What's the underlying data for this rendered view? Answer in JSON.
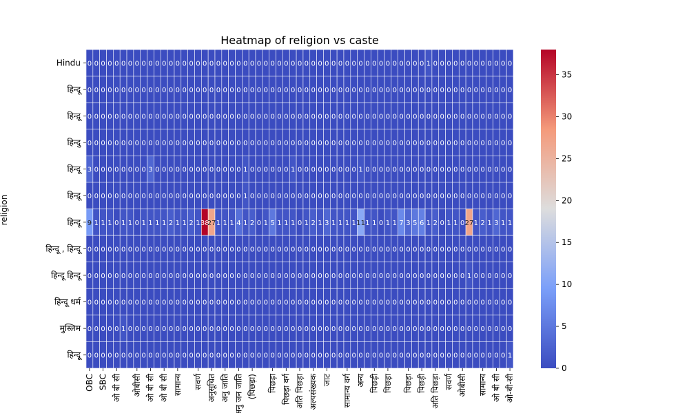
{
  "chart_data": {
    "type": "heatmap",
    "title": "Heatmap of religion vs caste",
    "ylabel": "religion",
    "xlabel": "",
    "colormap": "coolwarm",
    "color_low": "#3b4cc0",
    "color_mid": "#dddddd",
    "color_high": "#b40426",
    "value_range": [
      0,
      38
    ],
    "colorbar_ticks": [
      0,
      5,
      10,
      15,
      20,
      25,
      30,
      35
    ],
    "rows": [
      "Hindu",
      "हिन्दू",
      "हिन्दू़",
      "हिन्दु",
      "हिन्दू",
      "हिन्दू़",
      "हिन्दू",
      "हिन्दू , हिन्दू",
      "हिन्दू हिन्दू",
      "हिन्दू धर्म",
      "मुस्लिम",
      "हिन्दूू"
    ],
    "columns": [
      "OBC",
      "SBC",
      "",
      "",
      "",
      "",
      "",
      "",
      "",
      "",
      "",
      "",
      "",
      "",
      "",
      "",
      "",
      "",
      "",
      "",
      "",
      "",
      "",
      "",
      "",
      "",
      "",
      "",
      "",
      "",
      "",
      "",
      "",
      "",
      "",
      "",
      "",
      "",
      "",
      "",
      "",
      "",
      "",
      "",
      "",
      "",
      "",
      "",
      "",
      "",
      "",
      "",
      "",
      "",
      "",
      "",
      "",
      "",
      "",
      "",
      "",
      "",
      ""
    ],
    "x_tick_labels": [
      "OBC",
      "SBC",
      "ओ बी सी",
      "ओबीसी",
      "ओ बी सी",
      "ओ बी सी",
      "सामान्य",
      "सवर्ण",
      "अनुसूचित",
      "अनु जाति",
      "अनु जन जाति",
      "(पिछड़ा)",
      "पिछड़ा",
      "पिछड़ा वर्ग",
      "अति पिछड़ा",
      "अल्पसंख्यक",
      "जाट",
      "सामान्य वर्ग",
      "अन्य",
      "पिछड़ी",
      "पिछड़ा",
      "पिछड़ा",
      "पिछड़ी",
      "अति पिछड़ा",
      "सवर्ण",
      "ओबीसी",
      "सामान्य",
      "ओ बी सी",
      "ओ-बी-सी"
    ],
    "values": [
      [
        0,
        0,
        0,
        0,
        0,
        0,
        0,
        0,
        0,
        0,
        0,
        0,
        0,
        0,
        0,
        0,
        0,
        0,
        0,
        0,
        0,
        0,
        0,
        0,
        0,
        0,
        0,
        0,
        0,
        0,
        0,
        0,
        0,
        0,
        0,
        0,
        0,
        0,
        0,
        0,
        0,
        0,
        0,
        0,
        0,
        0,
        0,
        0,
        0,
        0,
        1,
        0,
        0,
        0,
        0,
        0,
        0,
        0,
        0,
        0,
        0,
        0,
        0
      ],
      [
        0,
        0,
        0,
        0,
        0,
        0,
        0,
        0,
        0,
        0,
        0,
        0,
        0,
        0,
        0,
        0,
        0,
        0,
        0,
        0,
        0,
        0,
        0,
        0,
        0,
        0,
        0,
        0,
        0,
        0,
        0,
        0,
        0,
        0,
        0,
        0,
        0,
        0,
        0,
        0,
        0,
        0,
        0,
        0,
        0,
        0,
        0,
        0,
        0,
        0,
        0,
        0,
        0,
        0,
        0,
        0,
        0,
        0,
        0,
        0,
        0,
        0,
        0
      ],
      [
        0,
        0,
        0,
        0,
        0,
        0,
        0,
        0,
        0,
        0,
        0,
        0,
        0,
        0,
        0,
        0,
        0,
        0,
        0,
        0,
        0,
        0,
        0,
        0,
        0,
        0,
        0,
        0,
        0,
        0,
        0,
        0,
        0,
        0,
        0,
        0,
        0,
        0,
        0,
        0,
        0,
        0,
        0,
        0,
        0,
        0,
        0,
        0,
        0,
        0,
        0,
        0,
        0,
        0,
        0,
        0,
        0,
        0,
        0,
        0,
        0,
        0,
        0
      ],
      [
        0,
        0,
        0,
        0,
        0,
        0,
        0,
        0,
        0,
        0,
        0,
        0,
        0,
        0,
        0,
        0,
        0,
        0,
        0,
        0,
        0,
        0,
        0,
        0,
        0,
        0,
        0,
        0,
        0,
        0,
        0,
        0,
        0,
        0,
        0,
        0,
        0,
        0,
        0,
        0,
        0,
        0,
        0,
        0,
        0,
        0,
        0,
        0,
        0,
        0,
        0,
        0,
        0,
        0,
        0,
        0,
        0,
        0,
        0,
        0,
        0,
        0,
        0
      ],
      [
        3,
        0,
        0,
        0,
        0,
        0,
        0,
        0,
        0,
        3,
        0,
        0,
        0,
        0,
        0,
        0,
        0,
        0,
        0,
        0,
        0,
        0,
        0,
        1,
        0,
        0,
        0,
        0,
        0,
        0,
        1,
        0,
        0,
        0,
        0,
        0,
        0,
        0,
        0,
        0,
        1,
        0,
        0,
        0,
        0,
        0,
        0,
        0,
        0,
        0,
        0,
        0,
        0,
        0,
        0,
        0,
        0,
        0,
        0,
        0,
        0,
        0,
        0
      ],
      [
        0,
        0,
        0,
        0,
        0,
        0,
        0,
        0,
        0,
        0,
        0,
        0,
        0,
        0,
        0,
        0,
        0,
        0,
        0,
        0,
        0,
        0,
        0,
        1,
        0,
        0,
        0,
        0,
        0,
        0,
        0,
        0,
        0,
        0,
        0,
        0,
        0,
        0,
        0,
        0,
        0,
        0,
        0,
        0,
        0,
        0,
        0,
        0,
        0,
        0,
        0,
        0,
        0,
        0,
        0,
        0,
        0,
        0,
        0,
        0,
        0,
        0,
        0
      ],
      [
        9,
        1,
        1,
        1,
        0,
        1,
        1,
        0,
        1,
        1,
        1,
        1,
        2,
        1,
        1,
        2,
        1,
        38,
        27,
        1,
        1,
        1,
        4,
        1,
        2,
        0,
        1,
        5,
        1,
        1,
        1,
        0,
        1,
        2,
        1,
        3,
        1,
        1,
        1,
        1,
        11,
        1,
        1,
        0,
        1,
        1,
        7,
        3,
        5,
        6,
        1,
        2,
        0,
        1,
        1,
        0,
        27,
        1,
        2,
        1,
        3,
        1,
        1
      ],
      [
        0,
        0,
        0,
        0,
        0,
        0,
        0,
        0,
        0,
        0,
        0,
        0,
        0,
        0,
        0,
        0,
        0,
        0,
        0,
        0,
        0,
        0,
        0,
        0,
        0,
        0,
        0,
        0,
        0,
        0,
        0,
        0,
        0,
        0,
        0,
        0,
        0,
        0,
        0,
        0,
        0,
        0,
        0,
        0,
        0,
        0,
        0,
        0,
        0,
        0,
        0,
        0,
        0,
        0,
        0,
        0,
        0,
        0,
        0,
        0,
        0,
        0,
        0
      ],
      [
        0,
        0,
        0,
        0,
        0,
        0,
        0,
        0,
        0,
        0,
        0,
        0,
        0,
        0,
        0,
        0,
        0,
        0,
        0,
        0,
        0,
        0,
        0,
        0,
        0,
        0,
        0,
        0,
        0,
        0,
        0,
        0,
        0,
        0,
        0,
        0,
        0,
        0,
        0,
        0,
        0,
        0,
        0,
        0,
        0,
        0,
        0,
        0,
        0,
        0,
        0,
        0,
        0,
        0,
        0,
        0,
        1,
        0,
        0,
        0,
        0,
        0,
        0
      ],
      [
        0,
        0,
        0,
        0,
        0,
        0,
        0,
        0,
        0,
        0,
        0,
        0,
        0,
        0,
        0,
        0,
        0,
        0,
        0,
        0,
        0,
        0,
        0,
        0,
        0,
        0,
        0,
        0,
        0,
        0,
        0,
        0,
        0,
        0,
        0,
        0,
        0,
        0,
        0,
        0,
        0,
        0,
        0,
        0,
        0,
        0,
        0,
        0,
        0,
        0,
        0,
        0,
        0,
        0,
        0,
        0,
        0,
        0,
        0,
        0,
        0,
        0,
        0
      ],
      [
        0,
        0,
        0,
        0,
        0,
        1,
        0,
        0,
        0,
        0,
        0,
        0,
        0,
        0,
        0,
        0,
        0,
        0,
        0,
        0,
        0,
        0,
        0,
        0,
        0,
        0,
        0,
        0,
        0,
        0,
        0,
        0,
        0,
        0,
        0,
        0,
        0,
        0,
        0,
        0,
        0,
        0,
        0,
        0,
        0,
        0,
        0,
        0,
        0,
        0,
        0,
        0,
        0,
        0,
        0,
        0,
        0,
        0,
        0,
        0,
        0,
        0,
        0
      ],
      [
        0,
        0,
        0,
        0,
        0,
        0,
        0,
        0,
        0,
        0,
        0,
        0,
        0,
        0,
        0,
        0,
        0,
        0,
        0,
        0,
        0,
        0,
        0,
        0,
        0,
        0,
        0,
        0,
        0,
        0,
        0,
        0,
        0,
        0,
        0,
        0,
        0,
        0,
        0,
        0,
        0,
        0,
        0,
        0,
        0,
        0,
        0,
        0,
        0,
        0,
        0,
        0,
        0,
        0,
        0,
        0,
        0,
        0,
        0,
        0,
        0,
        0,
        1
      ]
    ],
    "grid": false,
    "legend": "colorbar-right"
  }
}
